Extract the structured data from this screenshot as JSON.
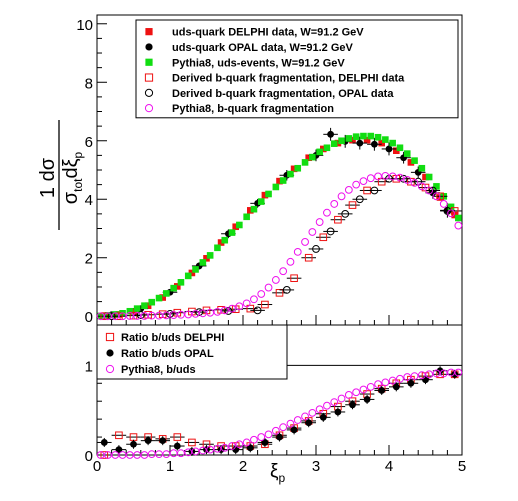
{
  "chart_data": [
    {
      "type": "scatter",
      "panel": "main",
      "xlim": [
        0,
        5
      ],
      "ylim": [
        -0.3,
        10.3
      ],
      "xticks": [
        "0",
        "1",
        "2",
        "3",
        "4",
        "5"
      ],
      "yticks": [
        "0",
        "2",
        "4",
        "6",
        "8",
        "10"
      ],
      "ylabel": {
        "numerator": "1 dσ",
        "denominator_main": "σ",
        "denominator_sub1": "tot",
        "denominator_mid": "dξ",
        "denominator_sub2": "p"
      },
      "legend_position": "top-right",
      "series": [
        {
          "name": "uds-quark DELPHI data, W=91.2 GeV",
          "marker": "filled-square",
          "color": "#ee1111",
          "x": [
            0.1,
            0.3,
            0.5,
            0.7,
            0.9,
            1.1,
            1.3,
            1.5,
            1.7,
            1.9,
            2.1,
            2.3,
            2.5,
            2.7,
            2.9,
            3.1,
            3.3,
            3.5,
            3.7,
            3.9,
            4.1,
            4.3,
            4.5,
            4.7,
            4.9
          ],
          "y": [
            0.02,
            0.06,
            0.16,
            0.36,
            0.64,
            1.02,
            1.48,
            1.98,
            2.52,
            3.06,
            3.62,
            4.14,
            4.62,
            5.04,
            5.42,
            5.72,
            5.92,
            6.02,
            6.02,
            5.92,
            5.66,
            5.26,
            4.76,
            4.06,
            3.46
          ]
        },
        {
          "name": "uds-quark OPAL data, W=91.2 GeV",
          "marker": "filled-circle",
          "color": "#000000",
          "x": [
            0.2,
            0.6,
            1.0,
            1.4,
            1.8,
            2.2,
            2.6,
            3.0,
            3.2,
            3.4,
            3.6,
            3.8,
            4.0,
            4.2,
            4.4,
            4.6,
            4.8
          ],
          "y": [
            0.05,
            0.26,
            0.82,
            1.72,
            2.82,
            3.86,
            4.82,
            5.5,
            6.22,
            5.98,
            5.92,
            5.88,
            5.72,
            5.42,
            4.92,
            4.22,
            3.62
          ],
          "xerr": 0.1,
          "yerr": [
            0.02,
            0.05,
            0.1,
            0.12,
            0.15,
            0.15,
            0.18,
            0.2,
            0.22,
            0.22,
            0.22,
            0.22,
            0.22,
            0.2,
            0.2,
            0.2,
            0.25
          ]
        },
        {
          "name": "Pythia8, uds-events, W=91.2 GeV",
          "marker": "filled-square",
          "color": "#11dd11",
          "x": [
            0.05,
            0.15,
            0.25,
            0.35,
            0.45,
            0.55,
            0.65,
            0.75,
            0.85,
            0.95,
            1.05,
            1.15,
            1.25,
            1.35,
            1.45,
            1.55,
            1.65,
            1.75,
            1.85,
            1.95,
            2.05,
            2.15,
            2.25,
            2.35,
            2.45,
            2.55,
            2.65,
            2.75,
            2.85,
            2.95,
            3.05,
            3.15,
            3.25,
            3.35,
            3.45,
            3.55,
            3.65,
            3.75,
            3.85,
            3.95,
            4.05,
            4.15,
            4.25,
            4.35,
            4.45,
            4.55,
            4.65,
            4.75,
            4.85,
            4.95
          ],
          "y": [
            0.01,
            0.03,
            0.06,
            0.1,
            0.17,
            0.26,
            0.36,
            0.48,
            0.62,
            0.78,
            0.96,
            1.16,
            1.38,
            1.6,
            1.84,
            2.08,
            2.34,
            2.6,
            2.86,
            3.12,
            3.4,
            3.66,
            3.92,
            4.18,
            4.42,
            4.64,
            4.86,
            5.06,
            5.26,
            5.44,
            5.62,
            5.76,
            5.9,
            6.0,
            6.08,
            6.14,
            6.16,
            6.16,
            6.12,
            6.04,
            5.92,
            5.76,
            5.56,
            5.32,
            5.06,
            4.76,
            4.44,
            4.1,
            3.74,
            3.36
          ]
        },
        {
          "name": "Derived b-quark fragmentation, DELPHI data",
          "marker": "open-square",
          "color": "#ee1111",
          "x": [
            0.1,
            0.3,
            0.5,
            0.7,
            0.9,
            1.1,
            1.3,
            1.5,
            1.7,
            1.9,
            2.1,
            2.3,
            2.5,
            2.7,
            2.9,
            3.1,
            3.3,
            3.5,
            3.7,
            3.9,
            4.1,
            4.3,
            4.5,
            4.7,
            4.9
          ],
          "y": [
            0.0,
            0.0,
            0.02,
            0.05,
            0.07,
            0.12,
            0.16,
            0.2,
            0.22,
            0.24,
            0.26,
            0.4,
            0.8,
            1.3,
            2.0,
            2.7,
            3.3,
            3.8,
            4.3,
            4.6,
            4.7,
            4.6,
            4.4,
            4.1,
            3.6
          ],
          "xerr": 0.1
        },
        {
          "name": "Derived b-quark fragmentation, OPAL data",
          "marker": "open-circle",
          "color": "#000000",
          "x": [
            0.2,
            0.6,
            1.0,
            1.4,
            1.8,
            2.2,
            2.6,
            3.0,
            3.2,
            3.4,
            3.6,
            3.8,
            4.0,
            4.2,
            4.4,
            4.6,
            4.8
          ],
          "y": [
            0.0,
            0.04,
            0.08,
            0.14,
            0.18,
            0.2,
            0.9,
            2.3,
            2.9,
            3.5,
            4.0,
            4.3,
            4.7,
            4.7,
            4.6,
            4.3,
            3.6
          ],
          "xerr": 0.1
        },
        {
          "name": "Pythia8, b-quark fragmentation",
          "marker": "open-circle",
          "color": "#ee11ee",
          "x": [
            0.05,
            0.15,
            0.25,
            0.35,
            0.45,
            0.55,
            0.65,
            0.75,
            0.85,
            0.95,
            1.05,
            1.15,
            1.25,
            1.35,
            1.45,
            1.55,
            1.65,
            1.75,
            1.85,
            1.95,
            2.05,
            2.15,
            2.25,
            2.35,
            2.45,
            2.55,
            2.65,
            2.75,
            2.85,
            2.95,
            3.05,
            3.15,
            3.25,
            3.35,
            3.45,
            3.55,
            3.65,
            3.75,
            3.85,
            3.95,
            4.05,
            4.15,
            4.25,
            4.35,
            4.45,
            4.55,
            4.65,
            4.75,
            4.85,
            4.95
          ],
          "y": [
            0.0,
            0.0,
            0.0,
            0.0,
            0.01,
            0.01,
            0.01,
            0.02,
            0.02,
            0.03,
            0.04,
            0.05,
            0.06,
            0.08,
            0.1,
            0.12,
            0.15,
            0.2,
            0.26,
            0.34,
            0.44,
            0.58,
            0.76,
            0.98,
            1.24,
            1.54,
            1.86,
            2.2,
            2.54,
            2.88,
            3.22,
            3.54,
            3.84,
            4.1,
            4.32,
            4.5,
            4.62,
            4.72,
            4.78,
            4.8,
            4.78,
            4.74,
            4.66,
            4.56,
            4.44,
            4.3,
            4.1,
            3.84,
            3.52,
            3.1
          ]
        }
      ]
    },
    {
      "type": "scatter",
      "panel": "ratio",
      "xlim": [
        0,
        5
      ],
      "ylim": [
        0,
        1.45
      ],
      "xticks": [
        "0",
        "1",
        "2",
        "3",
        "4",
        "5"
      ],
      "yticks": [
        "0",
        "1"
      ],
      "xlabel": {
        "main": "ξ",
        "sub": "p"
      },
      "reference_line": 1,
      "legend_position": "top-left",
      "series": [
        {
          "name": "Ratio b/uds DELPHI",
          "marker": "open-square",
          "color": "#ee1111",
          "x": [
            0.1,
            0.3,
            0.5,
            0.7,
            0.9,
            1.1,
            1.3,
            1.5,
            1.7,
            1.9,
            2.1,
            2.3,
            2.5,
            2.7,
            2.9,
            3.1,
            3.3,
            3.5,
            3.7,
            3.9,
            4.1,
            4.3,
            4.5,
            4.7,
            4.9
          ],
          "y": [
            0.0,
            0.22,
            0.2,
            0.2,
            0.18,
            0.2,
            0.14,
            0.12,
            0.1,
            0.1,
            0.1,
            0.12,
            0.22,
            0.3,
            0.38,
            0.46,
            0.54,
            0.6,
            0.68,
            0.74,
            0.8,
            0.84,
            0.88,
            0.9,
            0.9
          ],
          "xerr": 0.1
        },
        {
          "name": "Ratio b/uds OPAL",
          "marker": "filled-circle",
          "color": "#000000",
          "x": [
            0.1,
            0.3,
            0.5,
            0.7,
            0.9,
            1.1,
            1.3,
            1.5,
            1.7,
            1.9,
            2.1,
            2.3,
            2.5,
            2.7,
            2.9,
            3.1,
            3.3,
            3.5,
            3.7,
            3.9,
            4.1,
            4.3,
            4.5,
            4.7,
            4.9
          ],
          "y": [
            0.14,
            0.06,
            0.12,
            0.16,
            0.16,
            0.1,
            0.04,
            0.06,
            0.06,
            0.06,
            0.08,
            0.14,
            0.2,
            0.28,
            0.36,
            0.42,
            0.48,
            0.56,
            0.62,
            0.72,
            0.76,
            0.8,
            0.84,
            0.94,
            0.9
          ],
          "xerr": 0.1,
          "yerr": 0.05
        },
        {
          "name": "Pythia8, b/uds",
          "marker": "open-circle",
          "color": "#ee11ee",
          "x": [
            0.05,
            0.15,
            0.25,
            0.35,
            0.45,
            0.55,
            0.65,
            0.75,
            0.85,
            0.95,
            1.05,
            1.15,
            1.25,
            1.35,
            1.45,
            1.55,
            1.65,
            1.75,
            1.85,
            1.95,
            2.05,
            2.15,
            2.25,
            2.35,
            2.45,
            2.55,
            2.65,
            2.75,
            2.85,
            2.95,
            3.05,
            3.15,
            3.25,
            3.35,
            3.45,
            3.55,
            3.65,
            3.75,
            3.85,
            3.95,
            4.05,
            4.15,
            4.25,
            4.35,
            4.45,
            4.55,
            4.65,
            4.75,
            4.85,
            4.95
          ],
          "y": [
            0.0,
            0.0,
            0.0,
            0.0,
            0.0,
            0.0,
            0.0,
            0.01,
            0.01,
            0.01,
            0.02,
            0.02,
            0.03,
            0.04,
            0.05,
            0.06,
            0.07,
            0.08,
            0.1,
            0.12,
            0.14,
            0.17,
            0.2,
            0.23,
            0.27,
            0.31,
            0.35,
            0.39,
            0.43,
            0.47,
            0.51,
            0.55,
            0.59,
            0.63,
            0.67,
            0.7,
            0.73,
            0.76,
            0.79,
            0.81,
            0.83,
            0.85,
            0.87,
            0.88,
            0.89,
            0.9,
            0.91,
            0.91,
            0.92,
            0.92
          ]
        }
      ]
    }
  ]
}
